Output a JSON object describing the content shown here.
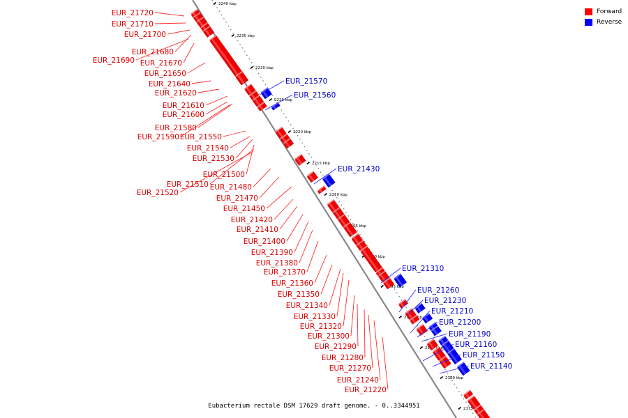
{
  "legend": {
    "forward_label": "Forward",
    "reverse_label": "Reverse",
    "forward_color": "#ff0000",
    "reverse_color": "#0000ff"
  },
  "caption": "Eubacterium rectale DSM 17629 draft genome. - 0..3344951",
  "axis": {
    "ticks": [
      "2240 kbp",
      "2235 kbp",
      "2230 kbp",
      "2225 kbp",
      "2220 kbp",
      "2215 kbp",
      "2210 kbp",
      "2205 kbp",
      "2200 kbp",
      "2195 kbp",
      "2190 kbp",
      "2185 kbp",
      "2180 kbp",
      "2175 kbp"
    ]
  },
  "forward_genes": [
    "EUR_21720",
    "EUR_21710",
    "EUR_21700",
    "EUR_21680",
    "EUR_21690",
    "EUR_21670",
    "EUR_21650",
    "EUR_21640",
    "EUR_21620",
    "EUR_21610",
    "EUR_21600",
    "EUR_21580",
    "EUR_21590",
    "EUR_21550",
    "EUR_21540",
    "EUR_21530",
    "EUR_21500",
    "EUR_21510",
    "EUR_21480",
    "EUR_21520",
    "EUR_21470",
    "EUR_21450",
    "EUR_21420",
    "EUR_21410",
    "EUR_21400",
    "EUR_21390",
    "EUR_21380",
    "EUR_21370",
    "EUR_21360",
    "EUR_21350",
    "EUR_21340",
    "EUR_21330",
    "EUR_21320",
    "EUR_21300",
    "EUR_21290",
    "EUR_21280",
    "EUR_21270",
    "EUR_21240",
    "EUR_21220"
  ],
  "reverse_genes": [
    "EUR_21570",
    "EUR_21560",
    "EUR_21430",
    "EUR_21310",
    "EUR_21260",
    "EUR_21230",
    "EUR_21210",
    "EUR_21200",
    "EUR_21190",
    "EUR_21160",
    "EUR_21150",
    "EUR_21140"
  ]
}
